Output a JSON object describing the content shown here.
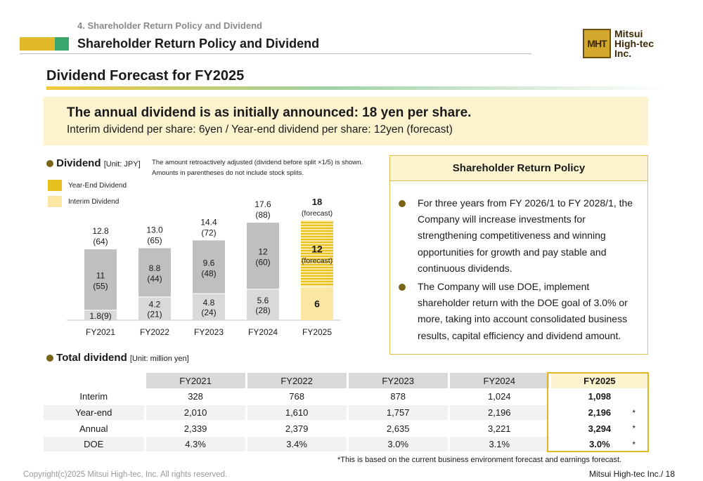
{
  "header": {
    "section_label": "4. Shareholder Return Policy and Dividend",
    "title": "Shareholder Return Policy and Dividend"
  },
  "logo": {
    "mark": "MHT",
    "line1": "Mitsui",
    "line2": "High-tec",
    "line3": "Inc."
  },
  "page_title": "Dividend Forecast for FY2025",
  "banner": {
    "main": "The annual dividend is as initially announced: 18 yen per share.",
    "sub": "Interim dividend per share: 6yen / Year-end dividend per share: 12yen (forecast)"
  },
  "dividend_section": {
    "title": "Dividend",
    "unit": "[Unit: JPY]",
    "note_line1": "The amount retroactively adjusted (dividend before split ×1/5) is shown.",
    "note_line2": "Amounts in parentheses do not include stock splits."
  },
  "legend": {
    "year_end": "Year-End Dividend",
    "interim": "Interim Dividend"
  },
  "colors": {
    "year_end_past": "#bfbfbf",
    "interim_past": "#d9d9d9",
    "year_end_forecast": "#e6c21f",
    "interim_forecast": "#fbe6a3",
    "legend_year_end": "#e6c21f",
    "legend_interim": "#fbe6a3",
    "accent_gold": "#e0b82a",
    "accent_green": "#3aa66b"
  },
  "chart_data": {
    "type": "bar",
    "stacked": true,
    "categories": [
      "FY2021",
      "FY2022",
      "FY2023",
      "FY2024",
      "FY2025"
    ],
    "series": [
      {
        "name": "Interim Dividend",
        "values": [
          1.8,
          4.2,
          4.8,
          5.6,
          6
        ]
      },
      {
        "name": "Year-End Dividend",
        "values": [
          11,
          8.8,
          9.6,
          12,
          12
        ]
      }
    ],
    "ylim": [
      0,
      18
    ],
    "interim_labels": [
      "1.8(9)",
      "4.2",
      "4.8",
      "5.6",
      "6"
    ],
    "interim_sublabels": [
      "",
      "(21)",
      "(24)",
      "(28)",
      ""
    ],
    "yearend_labels": [
      "11",
      "8.8",
      "9.6",
      "12",
      "12"
    ],
    "yearend_sublabels": [
      "(55)",
      "(44)",
      "(48)",
      "(60)",
      "(forecast)"
    ],
    "total_labels": [
      "12.8",
      "13.0",
      "14.4",
      "17.6",
      "18"
    ],
    "total_sublabels": [
      "(64)",
      "(65)",
      "(72)",
      "(88)",
      "(forecast)"
    ],
    "forecast_index": 4,
    "title": "",
    "xlabel": "",
    "ylabel": ""
  },
  "policy": {
    "title": "Shareholder Return Policy",
    "items": [
      "For three years from FY 2026/1 to FY 2028/1, the Company will increase investments for strengthening competitiveness and winning opportunities for growth and pay stable and continuous dividends.",
      "The Company will use DOE, implement shareholder return with the DOE goal of 3.0% or more, taking into account consolidated business results, capital efficiency and dividend amount."
    ]
  },
  "total_section": {
    "title": "Total dividend",
    "unit": "[Unit: million yen]"
  },
  "table": {
    "headers": [
      "FY2021",
      "FY2022",
      "FY2023",
      "FY2024",
      "FY2025"
    ],
    "rows": [
      {
        "label": "Interim",
        "values": [
          "328",
          "768",
          "878",
          "1,024",
          "1,098"
        ],
        "mark": ""
      },
      {
        "label": "Year-end",
        "values": [
          "2,010",
          "1,610",
          "1,757",
          "2,196",
          "2,196"
        ],
        "mark": "*"
      },
      {
        "label": "Annual",
        "values": [
          "2,339",
          "2,379",
          "2,635",
          "3,221",
          "3,294"
        ],
        "mark": "*"
      },
      {
        "label": "DOE",
        "values": [
          "4.3%",
          "3.4%",
          "3.0%",
          "3.1%",
          "3.0%"
        ],
        "mark": "*"
      }
    ]
  },
  "footnote": "*This is based on the current business environment forecast and earnings forecast.",
  "copyright": "Copyright(c)2025 Mitsui High-tec, Inc. All rights reserved.",
  "page_number": "Mitsui High-tec Inc./ 18"
}
